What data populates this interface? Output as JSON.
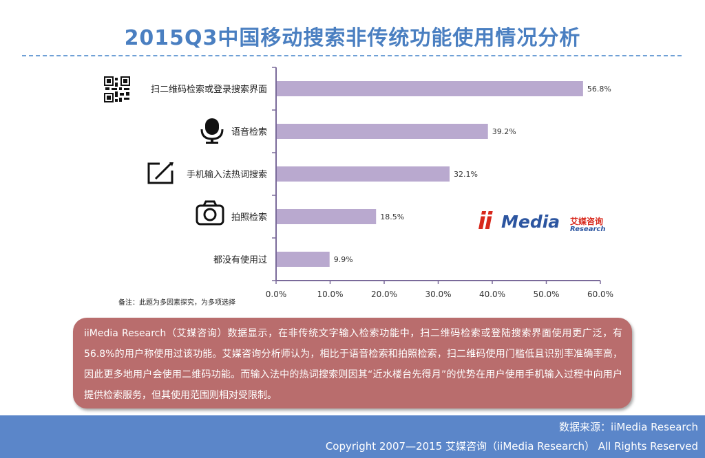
{
  "page": {
    "title": "2015Q3中国移动搜索非传统功能使用情况分析",
    "note": "备注：此题为多因素探究，为多项选择",
    "summary": "iiMedia Research（艾媒咨询）数据显示，在非传统文字输入检索功能中，扫二维码检索或登陆搜索界面使用更广泛，有56.8%的用户称使用过该功能。艾媒咨询分析师认为，相比于语音检索和拍照检索，扫二维码使用门槛低且识别率准确率高，因此更多地用户会使用二维码功能。而输入法中的热词搜索则因其“近水楼台先得月”的优势在用户使用手机输入过程中向用户提供检索服务，但其使用范围则相对受限制。",
    "source": "数据来源：iiMedia Research",
    "copyright": "Copyright 2007—2015 艾媒咨询（iiMedia Research） All Rights Reserved"
  },
  "logo": {
    "ii": "ii",
    "media": "Media",
    "cn": "艾媒咨询",
    "en": "Research"
  },
  "colors": {
    "title": "#4a7fc1",
    "bar": "#b9a9cf",
    "axis": "#7a6a9a",
    "summary_bg": "#b96d6d",
    "footer_bg": "#5b86c9"
  },
  "chart_data": {
    "type": "bar",
    "orientation": "horizontal",
    "categories": [
      "扫二维码检索或登录搜索界面",
      "语音检索",
      "手机输入法热词搜索",
      "拍照检索",
      "都没有使用过"
    ],
    "values": [
      56.8,
      39.2,
      32.1,
      18.5,
      9.9
    ],
    "value_labels": [
      "56.8%",
      "39.2%",
      "32.1%",
      "18.5%",
      "9.9%"
    ],
    "icons": [
      "qr-code-icon",
      "microphone-icon",
      "handwriting-icon",
      "camera-icon",
      ""
    ],
    "xlim": [
      0,
      60
    ],
    "xticks": [
      0,
      10,
      20,
      30,
      40,
      50,
      60
    ],
    "xtick_labels": [
      "0.0%",
      "10.0%",
      "20.0%",
      "30.0%",
      "40.0%",
      "50.0%",
      "60.0%"
    ],
    "grid": false,
    "legend": "none"
  }
}
